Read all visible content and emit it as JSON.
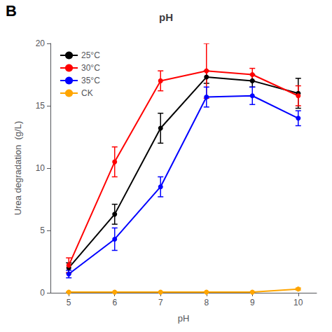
{
  "chart_data": {
    "type": "line",
    "title": "pH",
    "xlabel": "pH",
    "ylabel": "Urea degradation  (g/L)",
    "annotations": [
      "B"
    ],
    "x": [
      5,
      6,
      7,
      8,
      9,
      10
    ],
    "series": [
      {
        "name": "25°C",
        "color": "#000000",
        "values": [
          2.0,
          6.3,
          13.2,
          17.3,
          17.0,
          16.0
        ],
        "errors": [
          0.4,
          0.8,
          1.2,
          0.5,
          0.5,
          1.2
        ]
      },
      {
        "name": "30°C",
        "color": "#ff0000",
        "values": [
          2.2,
          10.5,
          17.0,
          17.8,
          17.5,
          15.8
        ],
        "errors": [
          0.6,
          1.2,
          0.8,
          2.2,
          0.5,
          0.8
        ]
      },
      {
        "name": "35°C",
        "color": "#0000ff",
        "values": [
          1.5,
          4.3,
          8.5,
          15.7,
          15.8,
          14.0
        ],
        "errors": [
          0.3,
          0.9,
          0.8,
          0.8,
          0.7,
          0.6
        ]
      },
      {
        "name": "CK",
        "color": "#ffa500",
        "values": [
          0.05,
          0.05,
          0.05,
          0.05,
          0.05,
          0.3
        ],
        "errors": [
          0.03,
          0.03,
          0.03,
          0.03,
          0.03,
          0.08
        ]
      }
    ],
    "xlim": [
      4.6,
      10.4
    ],
    "xticks": [
      5,
      6,
      7,
      8,
      9,
      10
    ],
    "ylim": [
      0,
      20
    ],
    "yticks": [
      0,
      5,
      10,
      15,
      20
    ],
    "grid": false,
    "legend": "upper left",
    "marker": "circle"
  }
}
